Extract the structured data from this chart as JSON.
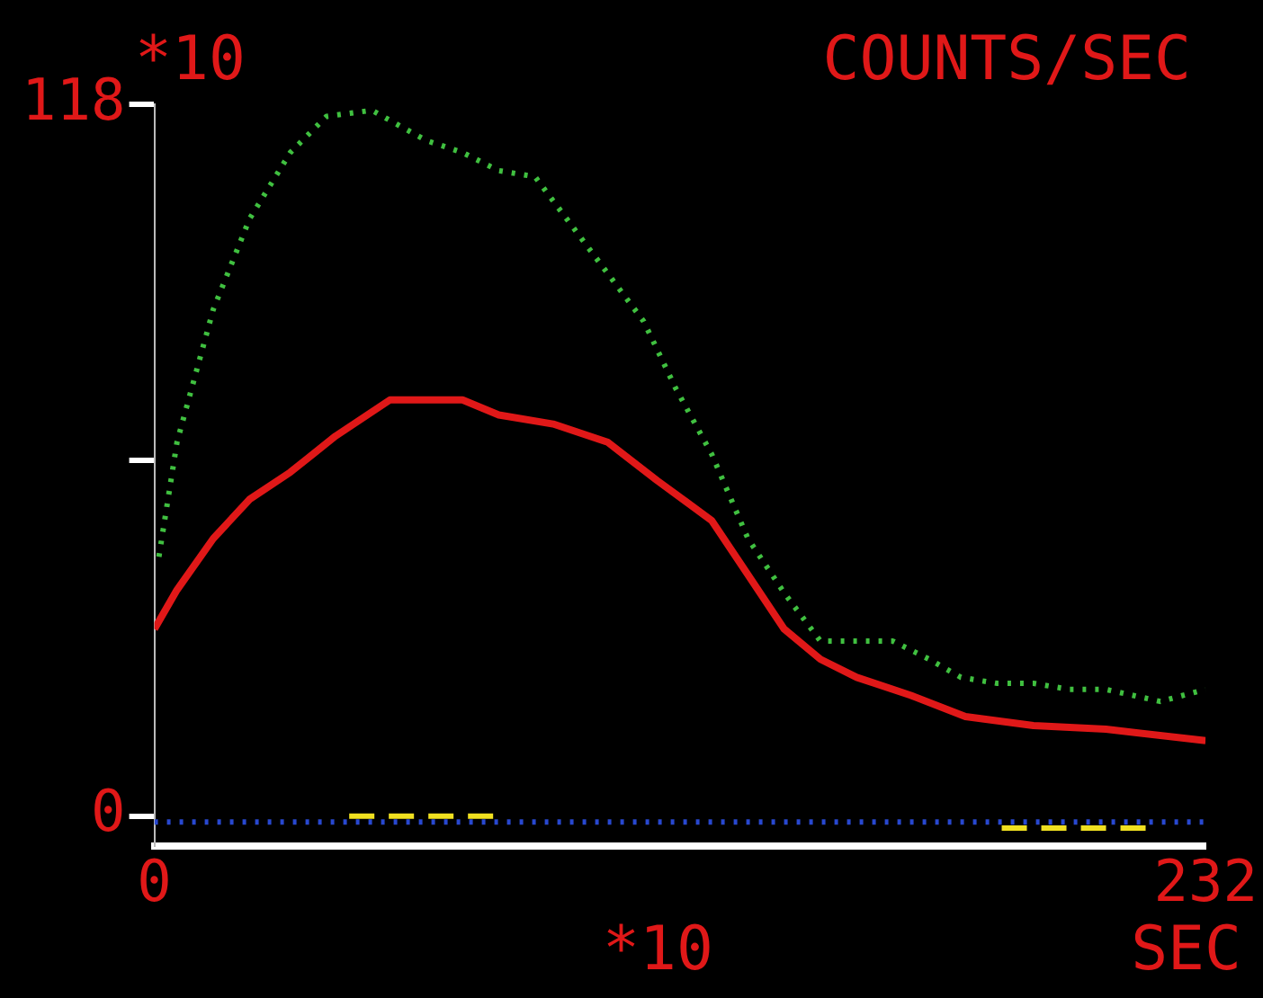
{
  "chart_data": {
    "type": "line",
    "title": "COUNTS/SEC",
    "ylabel": "*10",
    "xlabel": "*10",
    "annotations": [
      "SEC"
    ],
    "xlim": [
      0,
      232
    ],
    "xticks": [
      0,
      232
    ],
    "ylim": [
      -5,
      118
    ],
    "yticks": [
      0,
      {
        "value": 59,
        "label": null
      },
      118
    ],
    "grid": false,
    "legend": false,
    "marker": "none",
    "series": [
      {
        "color": "#40c040",
        "line_style": "dotted",
        "x": [
          1,
          5,
          13,
          21,
          30,
          38,
          48,
          60,
          68,
          76,
          84,
          92,
          100,
          108,
          115,
          123,
          131,
          139,
          147,
          155,
          163,
          171,
          178,
          186,
          194,
          202,
          210,
          222,
          232
        ],
        "values": [
          43,
          62,
          84,
          99,
          110,
          116,
          117,
          112,
          110,
          107,
          106,
          98,
          90,
          82,
          71,
          60,
          46,
          37,
          29,
          29,
          29,
          26,
          23,
          22,
          22,
          21,
          21,
          19,
          21
        ]
      },
      {
        "color": "#e01818",
        "line_style": "solid",
        "x": [
          0,
          5,
          13,
          21,
          30,
          40,
          52,
          68,
          76,
          88,
          100,
          111,
          123,
          131,
          139,
          147,
          155,
          167,
          179,
          194,
          210,
          232
        ],
        "values": [
          31,
          37.5,
          46,
          52.5,
          57,
          63,
          69,
          69,
          66.5,
          65,
          62,
          55.6,
          49,
          40,
          31,
          26,
          23,
          20,
          16.5,
          15,
          14.4,
          12.5
        ]
      },
      {
        "color": "#2848d0",
        "line_style": "dotted",
        "x": [
          0,
          232
        ],
        "values": [
          -1,
          -1
        ]
      },
      {
        "color": "#f0e020",
        "line_style": "dashed",
        "x": [
          43,
          75,
          76,
          187,
          220
        ],
        "values": [
          0,
          0,
          null,
          -2,
          -2
        ]
      }
    ]
  }
}
